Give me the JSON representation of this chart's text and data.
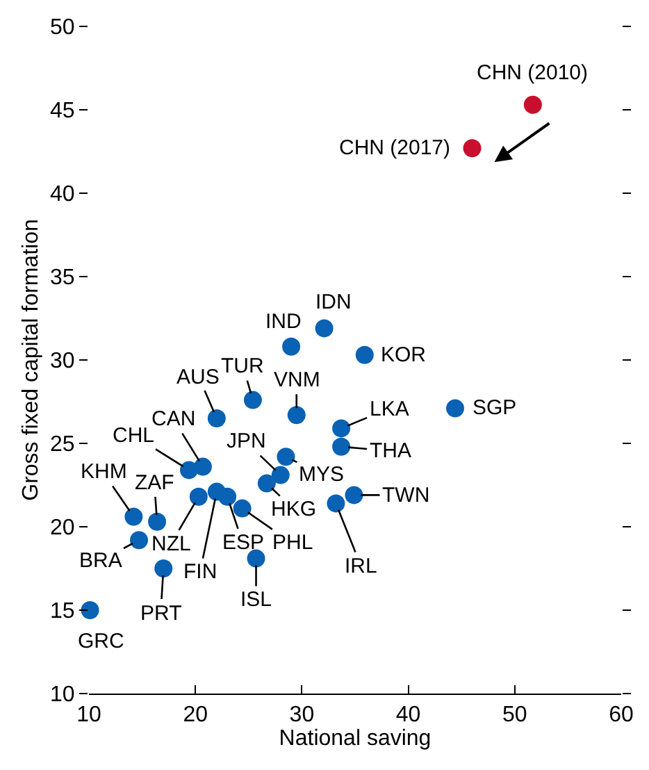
{
  "chart_data": {
    "type": "scatter",
    "xlabel": "National saving",
    "ylabel": "Gross fixed capital formation",
    "xlim": [
      10,
      60
    ],
    "xticks": [
      10,
      20,
      30,
      40,
      50,
      60
    ],
    "ylim": [
      10,
      50
    ],
    "yticks": [
      10,
      15,
      20,
      25,
      30,
      35,
      40,
      45,
      50
    ],
    "marker": "circle",
    "series": [
      {
        "color": "#0a62b4",
        "x": [
          10.1,
          32.1,
          29.0,
          35.9,
          44.4,
          25.4,
          29.5,
          22.0,
          33.7,
          33.7,
          20.7,
          19.4,
          28.0,
          28.5,
          26.7,
          14.2,
          16.4,
          20.3,
          22.0,
          23.0,
          24.4,
          14.7,
          17.0,
          25.7,
          33.2,
          34.9
        ],
        "values": [
          15.0,
          31.9,
          30.8,
          30.3,
          27.1,
          27.6,
          26.7,
          26.5,
          25.9,
          24.8,
          23.6,
          23.4,
          23.1,
          24.2,
          22.6,
          20.6,
          20.3,
          21.8,
          22.1,
          21.8,
          21.1,
          19.2,
          17.5,
          18.1,
          21.4,
          21.9
        ]
      },
      {
        "color": "#c8102e",
        "x": [
          51.7,
          46.0
        ],
        "values": [
          45.3,
          42.7
        ]
      }
    ],
    "annotations": [
      {
        "text": "GRC",
        "x": 10.1,
        "y": 15.0
      },
      {
        "text": "IDN",
        "x": 32.1,
        "y": 31.9
      },
      {
        "text": "IND",
        "x": 29.0,
        "y": 30.8
      },
      {
        "text": "KOR",
        "x": 35.9,
        "y": 30.3
      },
      {
        "text": "SGP",
        "x": 44.4,
        "y": 27.1
      },
      {
        "text": "TUR",
        "x": 25.4,
        "y": 27.6
      },
      {
        "text": "VNM",
        "x": 29.5,
        "y": 26.7
      },
      {
        "text": "AUS",
        "x": 22.0,
        "y": 26.5
      },
      {
        "text": "LKA",
        "x": 33.7,
        "y": 25.9
      },
      {
        "text": "THA",
        "x": 33.7,
        "y": 24.8
      },
      {
        "text": "CAN",
        "x": 20.7,
        "y": 23.6
      },
      {
        "text": "CHL",
        "x": 19.4,
        "y": 23.4
      },
      {
        "text": "JPN",
        "x": 28.0,
        "y": 23.1
      },
      {
        "text": "MYS",
        "x": 28.5,
        "y": 24.2
      },
      {
        "text": "HKG",
        "x": 26.7,
        "y": 22.6
      },
      {
        "text": "KHM",
        "x": 14.2,
        "y": 20.6
      },
      {
        "text": "ZAF",
        "x": 16.4,
        "y": 20.3
      },
      {
        "text": "NZL",
        "x": 20.3,
        "y": 21.8
      },
      {
        "text": "FIN",
        "x": 22.0,
        "y": 22.1
      },
      {
        "text": "ESP",
        "x": 23.0,
        "y": 21.8
      },
      {
        "text": "PHL",
        "x": 24.4,
        "y": 21.1
      },
      {
        "text": "BRA",
        "x": 14.7,
        "y": 19.2
      },
      {
        "text": "PRT",
        "x": 17.0,
        "y": 17.5
      },
      {
        "text": "ISL",
        "x": 25.7,
        "y": 18.1
      },
      {
        "text": "IRL",
        "x": 33.2,
        "y": 21.4
      },
      {
        "text": "TWN",
        "x": 34.9,
        "y": 21.9
      },
      {
        "text": "CHN (2010)",
        "x": 51.7,
        "y": 45.3
      },
      {
        "text": "CHN (2017)",
        "x": 46.0,
        "y": 42.7
      }
    ]
  }
}
